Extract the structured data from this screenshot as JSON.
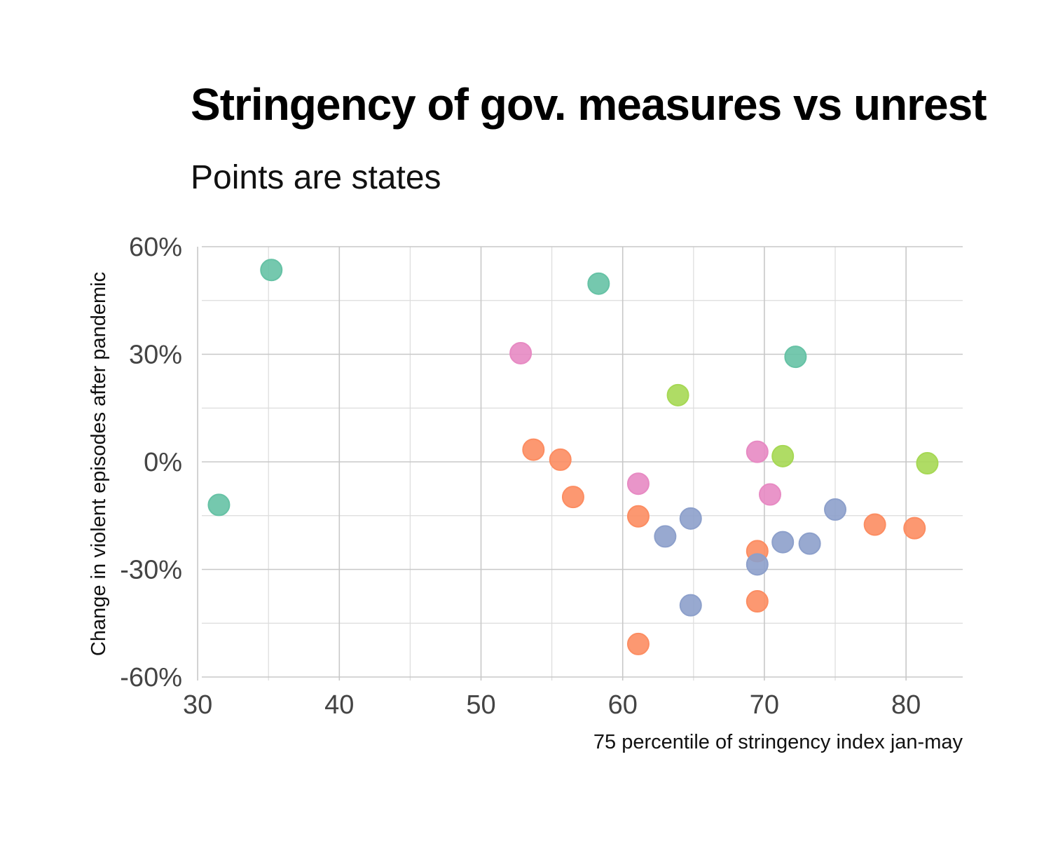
{
  "chart_data": {
    "type": "scatter",
    "title": "Stringency of gov. measures vs unrest",
    "subtitle": "Points are states",
    "xlabel": "75 percentile of stringency index jan-may",
    "ylabel": "Change in violent episodes after pandemic",
    "xlim": [
      29.5,
      84
    ],
    "ylim": [
      -60,
      60
    ],
    "x_ticks": [
      30,
      40,
      50,
      60,
      70,
      80
    ],
    "x_tick_labels": [
      "30",
      "40",
      "50",
      "60",
      "70",
      "80"
    ],
    "y_ticks": [
      -60,
      -30,
      0,
      30,
      60
    ],
    "y_tick_labels": [
      "-60%",
      "-30%",
      "0%",
      "30%",
      "60%"
    ],
    "grid": true,
    "legend": "none",
    "colors": {
      "green": "#66c2a5",
      "orange": "#fc8d62",
      "blue": "#8da0cb",
      "pink": "#e78ac3",
      "lime": "#a6d854"
    },
    "points": [
      {
        "x": 35.2,
        "y": 53.5,
        "color": "green"
      },
      {
        "x": 58.3,
        "y": 49.7,
        "color": "green"
      },
      {
        "x": 72.2,
        "y": 29.3,
        "color": "green"
      },
      {
        "x": 31.5,
        "y": -12.0,
        "color": "green"
      },
      {
        "x": 52.8,
        "y": 30.3,
        "color": "pink"
      },
      {
        "x": 69.5,
        "y": 2.8,
        "color": "pink"
      },
      {
        "x": 61.1,
        "y": -6.1,
        "color": "pink"
      },
      {
        "x": 70.4,
        "y": -9.1,
        "color": "pink"
      },
      {
        "x": 63.9,
        "y": 18.6,
        "color": "lime"
      },
      {
        "x": 71.3,
        "y": 1.6,
        "color": "lime"
      },
      {
        "x": 81.5,
        "y": -0.4,
        "color": "lime"
      },
      {
        "x": 53.7,
        "y": 3.4,
        "color": "orange"
      },
      {
        "x": 55.6,
        "y": 0.6,
        "color": "orange"
      },
      {
        "x": 56.5,
        "y": -9.8,
        "color": "orange"
      },
      {
        "x": 61.1,
        "y": -15.2,
        "color": "orange"
      },
      {
        "x": 69.5,
        "y": -24.9,
        "color": "orange"
      },
      {
        "x": 69.5,
        "y": -38.9,
        "color": "orange"
      },
      {
        "x": 61.1,
        "y": -50.8,
        "color": "orange"
      },
      {
        "x": 77.8,
        "y": -17.5,
        "color": "orange"
      },
      {
        "x": 80.6,
        "y": -18.5,
        "color": "orange"
      },
      {
        "x": 64.8,
        "y": -15.8,
        "color": "blue"
      },
      {
        "x": 63.0,
        "y": -20.8,
        "color": "blue"
      },
      {
        "x": 71.3,
        "y": -22.4,
        "color": "blue"
      },
      {
        "x": 73.2,
        "y": -22.8,
        "color": "blue"
      },
      {
        "x": 75.0,
        "y": -13.3,
        "color": "blue"
      },
      {
        "x": 69.5,
        "y": -28.6,
        "color": "blue"
      },
      {
        "x": 64.8,
        "y": -40.0,
        "color": "blue"
      }
    ]
  }
}
